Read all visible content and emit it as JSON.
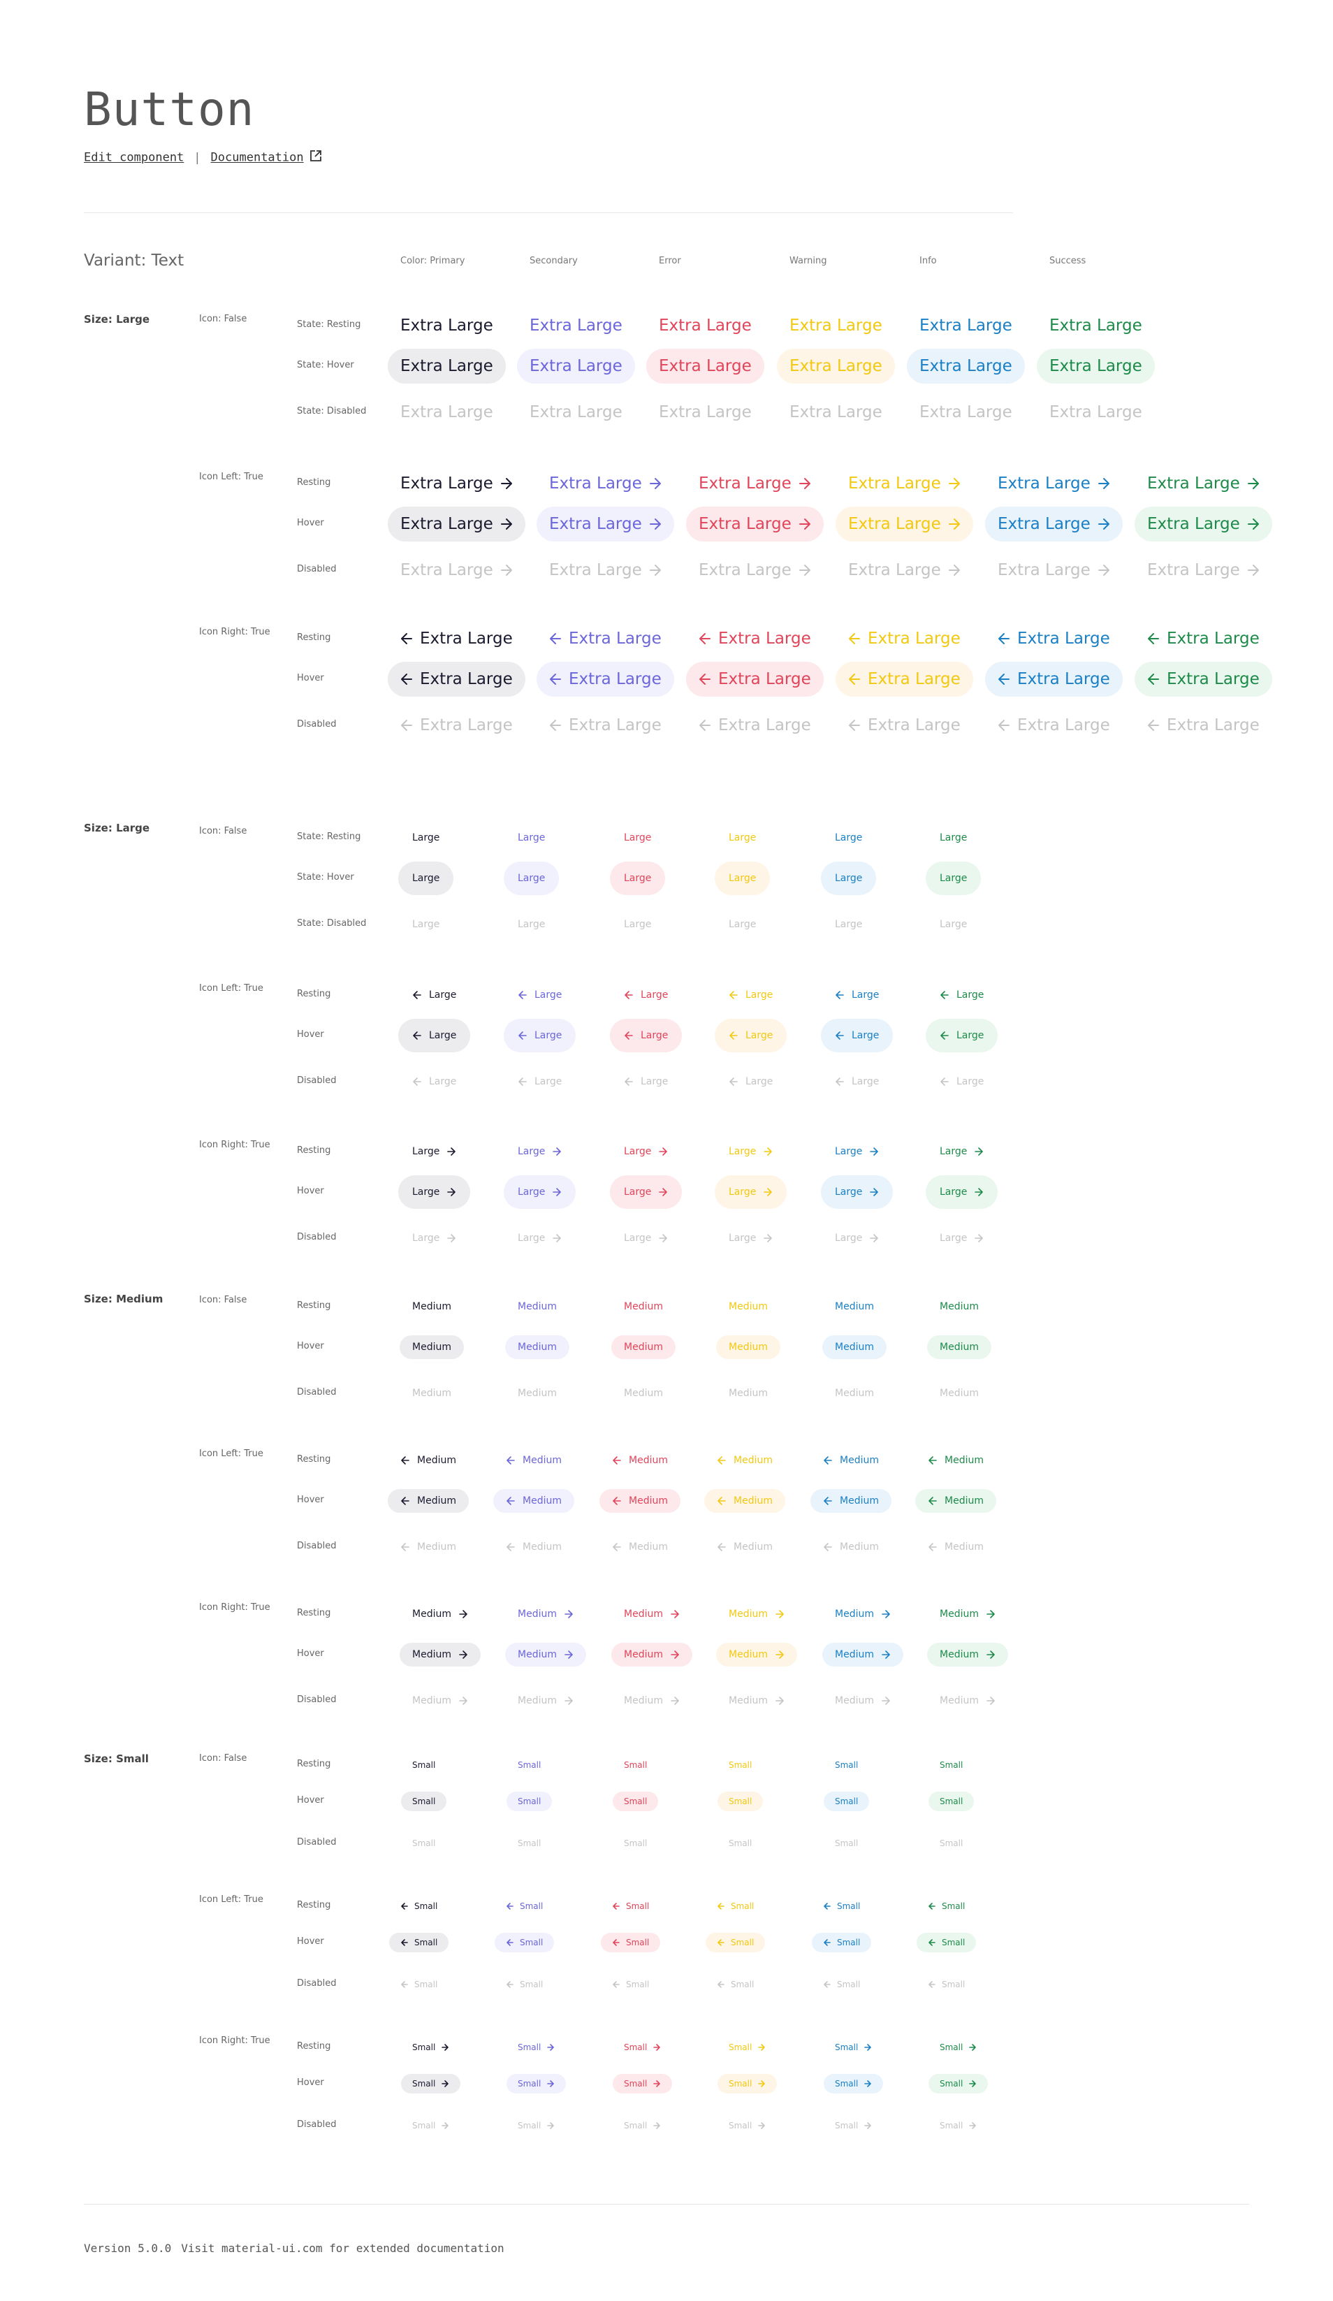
{
  "header": {
    "title": "Button",
    "edit_link": "Edit component",
    "separator": "|",
    "doc_link": "Documentation"
  },
  "variant_label": "Variant: Text",
  "color_headers": [
    "Color: Primary",
    "Secondary",
    "Error",
    "Warning",
    "Info",
    "Success"
  ],
  "colors": {
    "primary": "#1a1a2e",
    "secondary": "#6b66d9",
    "error": "#e0455a",
    "warning": "#f2c811",
    "info": "#1a7fc4",
    "success": "#1d8a4a",
    "disabled": "#c4c4c4"
  },
  "hover_backgrounds": {
    "primary": "#ececef",
    "secondary": "#f1f0fd",
    "error": "#fde8eb",
    "warning": "#fff5e6",
    "info": "#e8f3fb",
    "success": "#eaf7ee"
  },
  "icons": {
    "arrow_right": "arrow-right-icon",
    "arrow_left": "arrow-left-icon",
    "external": "external-link-icon"
  },
  "sections": [
    {
      "size_label": "Size: Large",
      "button_text": "Extra Large",
      "groups": [
        {
          "icon_label": "Icon: False",
          "states": [
            "State: Resting",
            "State: Hover",
            "State: Disabled"
          ]
        },
        {
          "icon_label": "Icon Left: True",
          "states": [
            "Resting",
            "Hover",
            "Disabled"
          ]
        },
        {
          "icon_label": "Icon Right: True",
          "states": [
            "Resting",
            "Hover",
            "Disabled"
          ]
        }
      ]
    },
    {
      "size_label": "Size: Large",
      "button_text": "Large",
      "groups": [
        {
          "icon_label": "Icon: False",
          "states": [
            "State: Resting",
            "State: Hover",
            "State: Disabled"
          ]
        },
        {
          "icon_label": "Icon Left: True",
          "states": [
            "Resting",
            "Hover",
            "Disabled"
          ]
        },
        {
          "icon_label": "Icon Right: True",
          "states": [
            "Resting",
            "Hover",
            "Disabled"
          ]
        }
      ]
    },
    {
      "size_label": "Size: Medium",
      "button_text": "Medium",
      "groups": [
        {
          "icon_label": "Icon: False",
          "states": [
            "Resting",
            "Hover",
            "Disabled"
          ]
        },
        {
          "icon_label": "Icon Left: True",
          "states": [
            "Resting",
            "Hover",
            "Disabled"
          ]
        },
        {
          "icon_label": "Icon Right: True",
          "states": [
            "Resting",
            "Hover",
            "Disabled"
          ]
        }
      ]
    },
    {
      "size_label": "Size: Small",
      "button_text": "Small",
      "groups": [
        {
          "icon_label": "Icon: False",
          "states": [
            "Resting",
            "Hover",
            "Disabled"
          ]
        },
        {
          "icon_label": "Icon Left: True",
          "states": [
            "Resting",
            "Hover",
            "Disabled"
          ]
        },
        {
          "icon_label": "Icon Right: True",
          "states": [
            "Resting",
            "Hover",
            "Disabled"
          ]
        }
      ]
    }
  ],
  "footer": {
    "version": "Version 5.0.0",
    "note": "Visit material-ui.com for extended documentation"
  }
}
